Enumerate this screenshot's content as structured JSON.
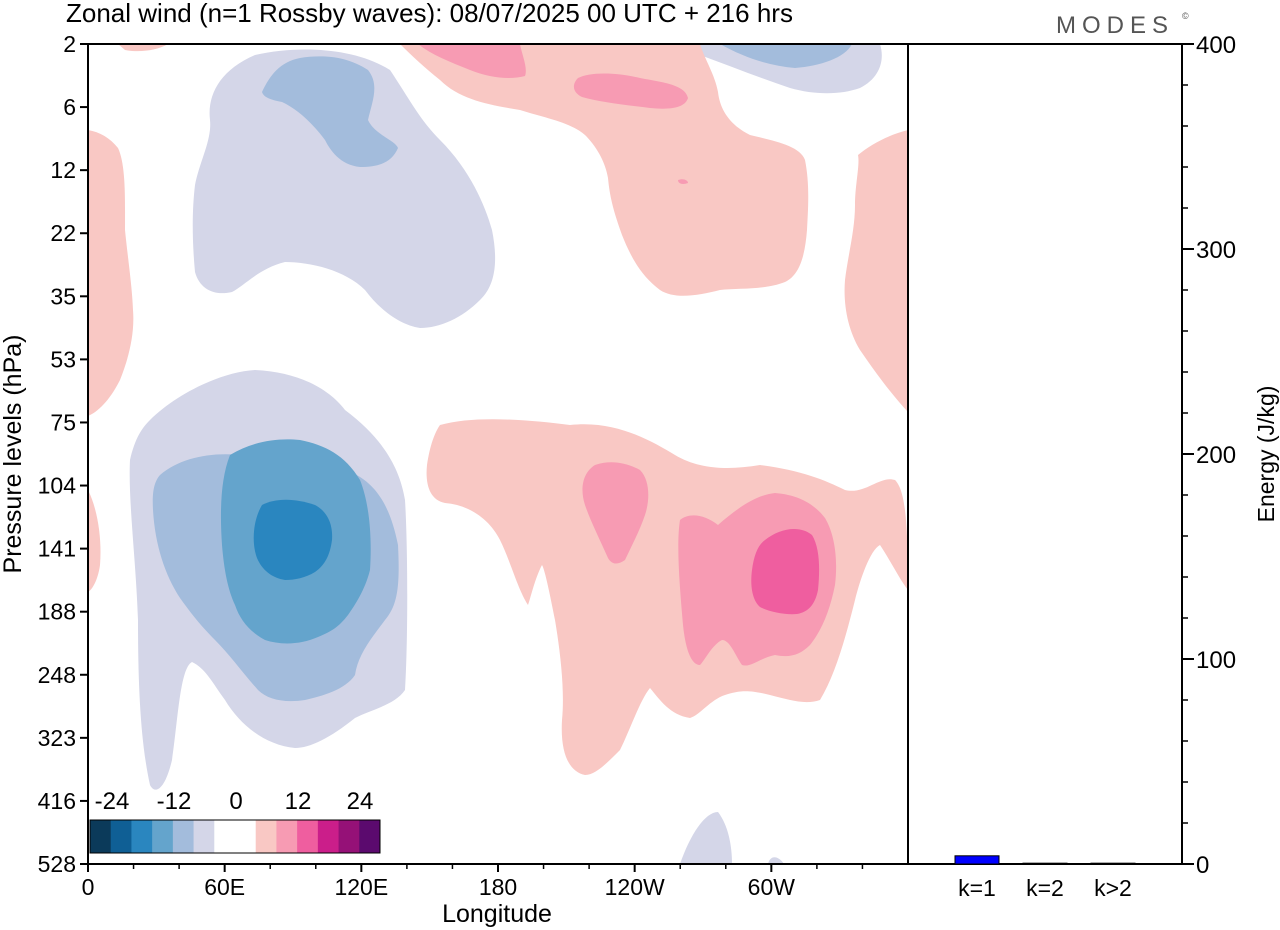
{
  "title": "Zonal wind (n=1 Rossby waves):  08/07/2025  00 UTC  + 216 hrs",
  "brand": "MODES",
  "brand_mark": "©",
  "chart_data": [
    {
      "type": "heatmap",
      "xlabel": "Longitude",
      "ylabel": "Pressure levels (hPa)",
      "x_ticks": [
        "0",
        "60E",
        "120E",
        "180",
        "120W",
        "60W"
      ],
      "y_ticks": [
        "2",
        "6",
        "12",
        "22",
        "35",
        "53",
        "75",
        "104",
        "141",
        "188",
        "248",
        "323",
        "416",
        "528"
      ],
      "colorbar": {
        "labels": [
          "-24",
          "-12",
          "0",
          "12",
          "24"
        ],
        "colors": [
          "#0b3a5a",
          "#0f5f95",
          "#2a86bf",
          "#64a4cc",
          "#a3bcdc",
          "#d4d6e8",
          "#ffffff",
          "#ffffff",
          "#f9c8c4",
          "#f79bb3",
          "#ef5e9f",
          "#cb1e8a",
          "#951177",
          "#5b0a6e"
        ]
      },
      "regions": [
        {
          "sign": "negative",
          "level": 1,
          "center": {
            "x": "60E",
            "y": "141"
          },
          "label": "lower troposphere negative anomaly"
        },
        {
          "sign": "negative",
          "level": 1,
          "center": {
            "x": "60E",
            "y": "12"
          },
          "label": "stratospheric negative anomaly"
        },
        {
          "sign": "positive",
          "level": 1,
          "center": {
            "x": "60W",
            "y": "141"
          },
          "label": "lower troposphere positive anomaly"
        }
      ]
    },
    {
      "type": "bar",
      "categories": [
        "k=1",
        "k=2",
        "k>2"
      ],
      "values": [
        4,
        0.4,
        0.4
      ],
      "ylabel": "Energy (J/kg)",
      "ylim": [
        0,
        400
      ],
      "y_ticks": [
        "0",
        "100",
        "200",
        "300",
        "400"
      ],
      "bar_color": "#0000ff"
    }
  ],
  "colors": {
    "neg1": "#d4d6e8",
    "neg2": "#a3bcdc",
    "neg3": "#64a4cc",
    "neg4": "#2a86bf",
    "pos1": "#f9c8c4",
    "pos2": "#f79bb3",
    "pos3": "#ef5e9f"
  }
}
